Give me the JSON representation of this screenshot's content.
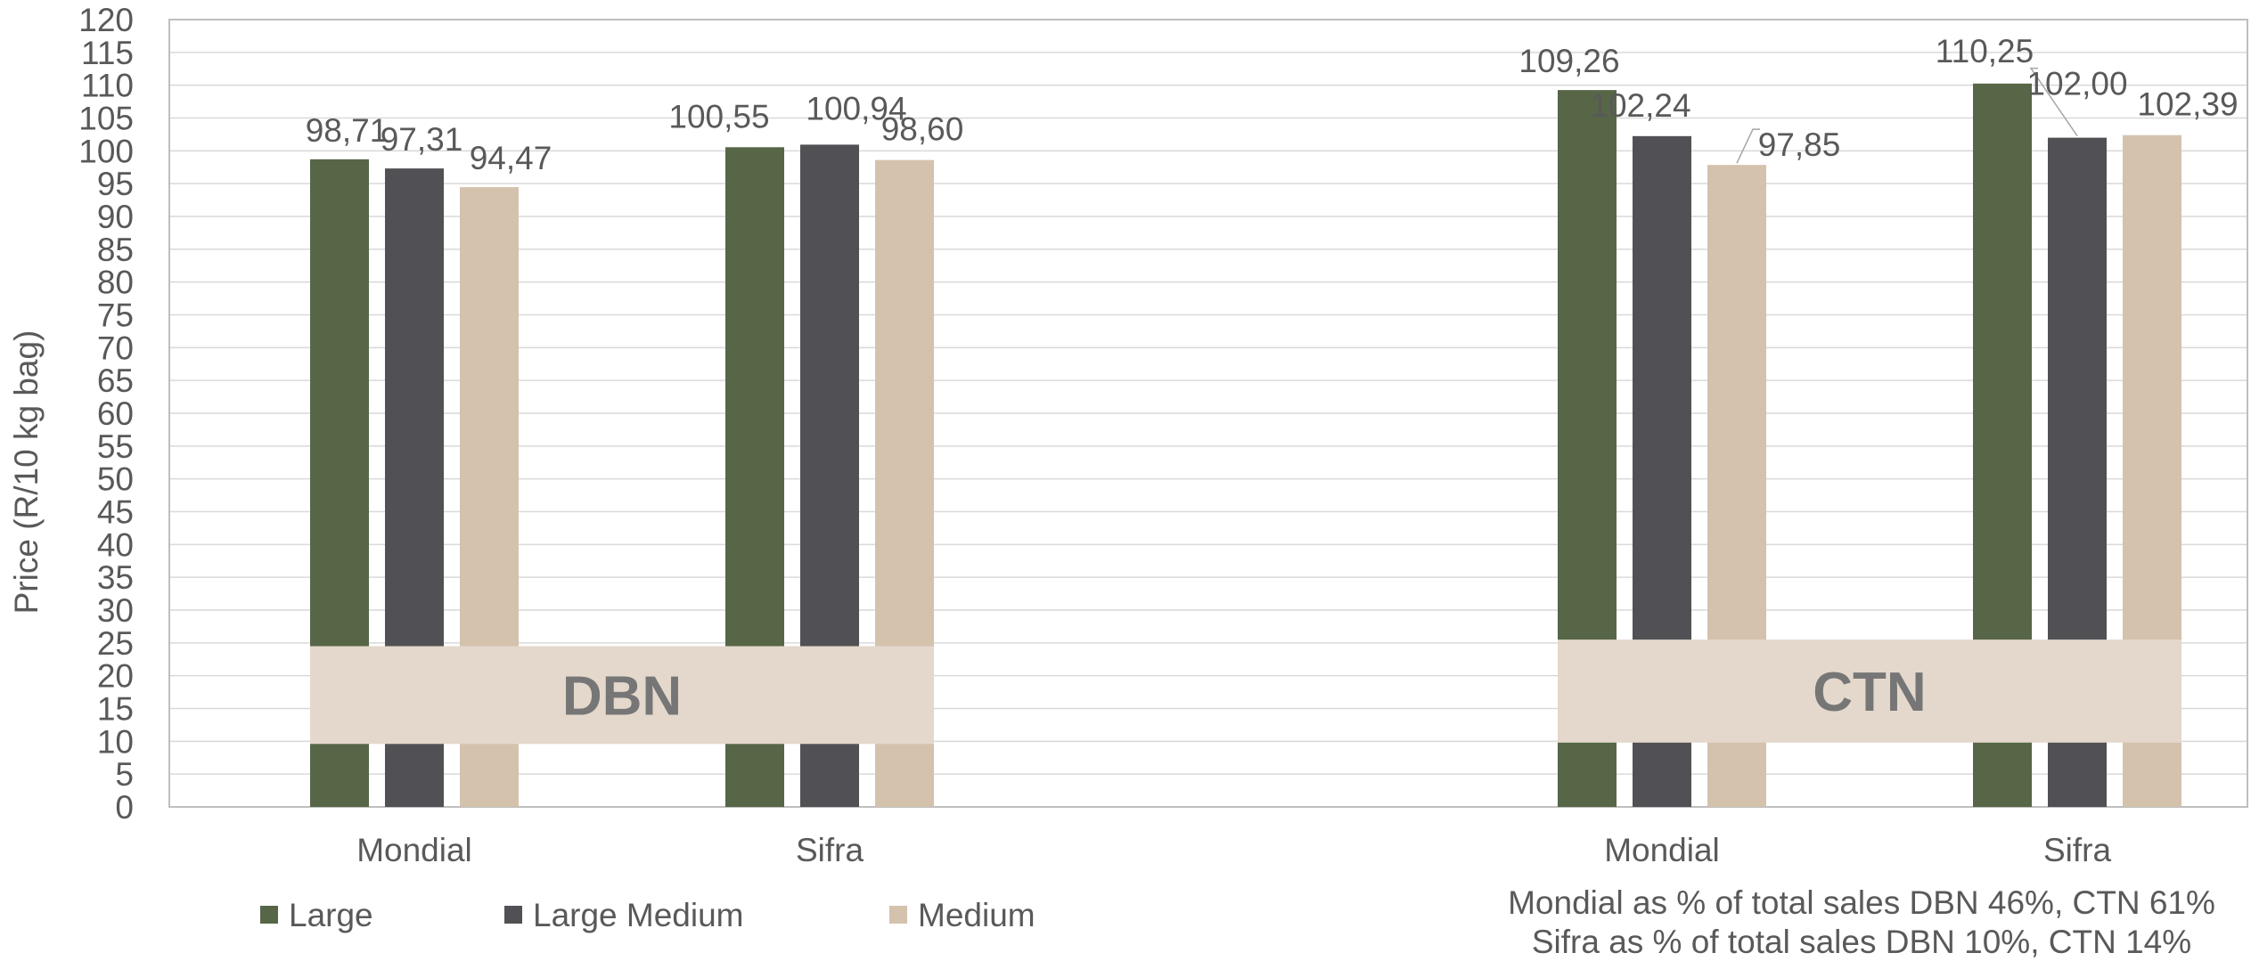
{
  "chart_data": {
    "type": "bar",
    "ylabel": "Price (R/10 kg bag)",
    "ylim": [
      0,
      120
    ],
    "ytick_step": 5,
    "grid": true,
    "legend_position": "bottom-left",
    "groups": [
      {
        "name": "DBN",
        "categories": [
          "Mondial",
          "Sifra"
        ],
        "series": [
          {
            "name": "Large",
            "values": [
              98.71,
              100.55
            ],
            "labels": [
              "98,71",
              "100,55"
            ]
          },
          {
            "name": "Large Medium",
            "values": [
              97.31,
              100.94
            ],
            "labels": [
              "97,31",
              "100,94"
            ]
          },
          {
            "name": "Medium",
            "values": [
              94.47,
              98.6
            ],
            "labels": [
              "94,47",
              "98,60"
            ]
          }
        ]
      },
      {
        "name": "CTN",
        "categories": [
          "Mondial",
          "Sifra"
        ],
        "series": [
          {
            "name": "Large",
            "values": [
              109.26,
              110.25
            ],
            "labels": [
              "109,26",
              "110,25"
            ]
          },
          {
            "name": "Large Medium",
            "values": [
              102.24,
              102.0
            ],
            "labels": [
              "102,24",
              "102,00"
            ]
          },
          {
            "name": "Medium",
            "values": [
              97.85,
              102.39
            ],
            "labels": [
              "97,85",
              "102,39"
            ]
          }
        ]
      }
    ],
    "legend": [
      "Large",
      "Large Medium",
      "Medium"
    ],
    "series_colors": {
      "Large": "#566647",
      "Large Medium": "#515155",
      "Medium": "#d4c2ad"
    },
    "notes": [
      "Mondial as % of total sales DBN 46%, CTN 61%",
      "Sifra as % of total sales DBN 10%, CTN 14%"
    ]
  },
  "colors": {
    "grid": "#d9d9d9",
    "axis": "#bfbfbf",
    "text": "#595959",
    "group_band": "#e4d8cc",
    "group_text": "#767676"
  }
}
